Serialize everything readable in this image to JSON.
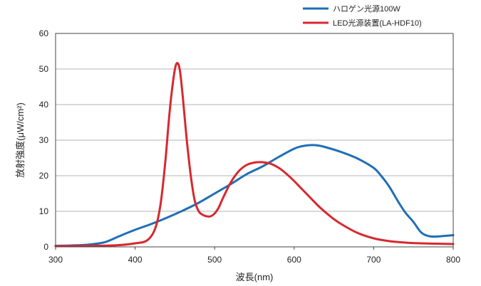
{
  "chart_data": {
    "type": "line",
    "xlabel": "波長(nm)",
    "ylabel": "放射強度(μW/cm²)",
    "xlim": [
      300,
      800
    ],
    "ylim": [
      0,
      60
    ],
    "x_ticks": [
      "300",
      "400",
      "500",
      "600",
      "700",
      "800"
    ],
    "y_ticks": [
      "0",
      "10",
      "20",
      "30",
      "40",
      "50",
      "60"
    ],
    "grid": "horizontal",
    "legend_position": "top-right",
    "series": [
      {
        "name": "ハロゲン光源100W",
        "color": "#1f6fb5",
        "points": [
          [
            300,
            0.3
          ],
          [
            320,
            0.4
          ],
          [
            340,
            0.6
          ],
          [
            360,
            1.2
          ],
          [
            370,
            2
          ],
          [
            380,
            3
          ],
          [
            400,
            4.8
          ],
          [
            420,
            6.4
          ],
          [
            440,
            8.2
          ],
          [
            460,
            10.2
          ],
          [
            480,
            12.4
          ],
          [
            500,
            15
          ],
          [
            520,
            17.6
          ],
          [
            540,
            20.4
          ],
          [
            560,
            22.6
          ],
          [
            580,
            25.2
          ],
          [
            600,
            27.6
          ],
          [
            610,
            28.3
          ],
          [
            620,
            28.6
          ],
          [
            630,
            28.5
          ],
          [
            640,
            28
          ],
          [
            660,
            26.6
          ],
          [
            680,
            24.8
          ],
          [
            700,
            22.2
          ],
          [
            710,
            19.8
          ],
          [
            720,
            16.8
          ],
          [
            730,
            13
          ],
          [
            740,
            9.6
          ],
          [
            750,
            7
          ],
          [
            760,
            4
          ],
          [
            770,
            3
          ],
          [
            780,
            2.9
          ],
          [
            790,
            3.1
          ],
          [
            800,
            3.3
          ]
        ]
      },
      {
        "name": "LED光源装置(LA-HDF10)",
        "color": "#d7282f",
        "points": [
          [
            300,
            0.2
          ],
          [
            350,
            0.3
          ],
          [
            380,
            0.5
          ],
          [
            400,
            1
          ],
          [
            415,
            1.8
          ],
          [
            425,
            5
          ],
          [
            432,
            12
          ],
          [
            438,
            24
          ],
          [
            443,
            37
          ],
          [
            448,
            47
          ],
          [
            452,
            51.5
          ],
          [
            456,
            50
          ],
          [
            460,
            42
          ],
          [
            465,
            30
          ],
          [
            470,
            20
          ],
          [
            475,
            13
          ],
          [
            480,
            10
          ],
          [
            485,
            9
          ],
          [
            490,
            8.6
          ],
          [
            495,
            8.6
          ],
          [
            500,
            9.4
          ],
          [
            505,
            11
          ],
          [
            510,
            13.5
          ],
          [
            520,
            18
          ],
          [
            530,
            21.2
          ],
          [
            540,
            23
          ],
          [
            550,
            23.7
          ],
          [
            560,
            23.8
          ],
          [
            570,
            23.4
          ],
          [
            580,
            22.3
          ],
          [
            590,
            20.6
          ],
          [
            600,
            18.5
          ],
          [
            610,
            16.2
          ],
          [
            620,
            13.9
          ],
          [
            630,
            11.6
          ],
          [
            640,
            9.6
          ],
          [
            650,
            7.8
          ],
          [
            660,
            6.3
          ],
          [
            680,
            3.9
          ],
          [
            700,
            2.4
          ],
          [
            720,
            1.6
          ],
          [
            740,
            1.2
          ],
          [
            760,
            1
          ],
          [
            780,
            0.9
          ],
          [
            800,
            0.8
          ]
        ]
      }
    ]
  }
}
